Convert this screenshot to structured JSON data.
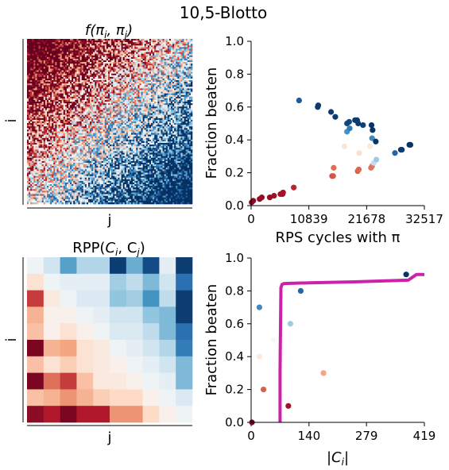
{
  "figure": {
    "suptitle": "10,5-Blotto"
  },
  "colors": {
    "diverging": [
      "#67001f",
      "#b2182b",
      "#d6604d",
      "#f4a582",
      "#fddbc7",
      "#f7f7f7",
      "#d1e5f0",
      "#92c5de",
      "#4393c3",
      "#2166ac",
      "#053061"
    ],
    "accent_line": "#cc22aa"
  },
  "chart_data": [
    {
      "id": "heatmap_f",
      "type": "heatmap",
      "title": "f(πi, πj)",
      "title_main": "f(π",
      "title_sub1": "i",
      "title_mid": ", π",
      "title_sub2": "j",
      "title_end": ")",
      "xlabel": "j",
      "ylabel": "i",
      "rows": 100,
      "cols": 100,
      "value_range": [
        -1,
        1
      ],
      "description_pattern": "noisy payoff matrix; lower-left mostly red (negative), right columns mostly blue (positive)"
    },
    {
      "id": "scatter_rps",
      "type": "scatter",
      "xlabel": "RPS cycles with π",
      "ylabel": "Fraction beaten",
      "xlim": [
        0,
        32517
      ],
      "ylim": [
        0,
        1.0
      ],
      "xticks": [
        0,
        10839,
        21678,
        32517
      ],
      "yticks": [
        0.0,
        0.2,
        0.4,
        0.6,
        0.8,
        1.0
      ],
      "ytick_labels": [
        "0.0",
        "0.2",
        "0.4",
        "0.6",
        "0.8",
        "1.0"
      ],
      "points": [
        {
          "x": 100,
          "y": 0.02,
          "c": 0.05
        },
        {
          "x": 400,
          "y": 0.03,
          "c": 0.05
        },
        {
          "x": 1600,
          "y": 0.04,
          "c": 0.06
        },
        {
          "x": 2000,
          "y": 0.05,
          "c": 0.06
        },
        {
          "x": 3500,
          "y": 0.05,
          "c": 0.06
        },
        {
          "x": 4300,
          "y": 0.06,
          "c": 0.07
        },
        {
          "x": 5500,
          "y": 0.07,
          "c": 0.08
        },
        {
          "x": 5900,
          "y": 0.07,
          "c": 0.08
        },
        {
          "x": 6000,
          "y": 0.08,
          "c": 0.08
        },
        {
          "x": 8000,
          "y": 0.11,
          "c": 0.12
        },
        {
          "x": 15200,
          "y": 0.18,
          "c": 0.18
        },
        {
          "x": 15400,
          "y": 0.18,
          "c": 0.19
        },
        {
          "x": 15500,
          "y": 0.23,
          "c": 0.22
        },
        {
          "x": 20000,
          "y": 0.21,
          "c": 0.2
        },
        {
          "x": 20200,
          "y": 0.22,
          "c": 0.21
        },
        {
          "x": 22500,
          "y": 0.23,
          "c": 0.23
        },
        {
          "x": 22700,
          "y": 0.24,
          "c": 0.23
        },
        {
          "x": 17500,
          "y": 0.36,
          "c": 0.44
        },
        {
          "x": 20300,
          "y": 0.32,
          "c": 0.42
        },
        {
          "x": 22300,
          "y": 0.36,
          "c": 0.45
        },
        {
          "x": 23000,
          "y": 0.26,
          "c": 0.62
        },
        {
          "x": 23500,
          "y": 0.28,
          "c": 0.68
        },
        {
          "x": 18000,
          "y": 0.45,
          "c": 0.8
        },
        {
          "x": 18500,
          "y": 0.47,
          "c": 0.85
        },
        {
          "x": 22700,
          "y": 0.41,
          "c": 0.82
        },
        {
          "x": 9000,
          "y": 0.64,
          "c": 0.92
        },
        {
          "x": 12500,
          "y": 0.6,
          "c": 0.98
        },
        {
          "x": 12600,
          "y": 0.61,
          "c": 0.98
        },
        {
          "x": 15000,
          "y": 0.57,
          "c": 0.98
        },
        {
          "x": 15800,
          "y": 0.54,
          "c": 0.98
        },
        {
          "x": 18000,
          "y": 0.5,
          "c": 0.96
        },
        {
          "x": 18400,
          "y": 0.51,
          "c": 0.96
        },
        {
          "x": 19500,
          "y": 0.52,
          "c": 0.98
        },
        {
          "x": 19900,
          "y": 0.52,
          "c": 0.98
        },
        {
          "x": 20100,
          "y": 0.5,
          "c": 0.98
        },
        {
          "x": 21000,
          "y": 0.49,
          "c": 0.97
        },
        {
          "x": 22600,
          "y": 0.49,
          "c": 0.99
        },
        {
          "x": 22800,
          "y": 0.46,
          "c": 0.99
        },
        {
          "x": 23400,
          "y": 0.39,
          "c": 0.99
        },
        {
          "x": 27000,
          "y": 0.32,
          "c": 0.9
        },
        {
          "x": 28100,
          "y": 0.34,
          "c": 0.98
        },
        {
          "x": 28300,
          "y": 0.34,
          "c": 0.98
        },
        {
          "x": 29700,
          "y": 0.37,
          "c": 0.99
        },
        {
          "x": 29900,
          "y": 0.37,
          "c": 0.99
        }
      ]
    },
    {
      "id": "heatmap_rpp",
      "type": "heatmap",
      "title": "RPP(Ci, Cj)",
      "title_main": "RPP(",
      "title_sub1": "i",
      "title_mid": ", C",
      "title_sub2": "j",
      "title_end": ")",
      "title_c": "C",
      "xlabel": "j",
      "ylabel": "i",
      "value_range": [
        -1,
        1
      ],
      "matrix": [
        [
          0.05,
          0.2,
          0.55,
          0.3,
          0.3,
          0.95,
          0.5,
          0.9,
          0.1,
          0.95
        ],
        [
          -0.15,
          0.05,
          0.1,
          0.1,
          0.1,
          0.35,
          0.25,
          0.45,
          0.2,
          0.75
        ],
        [
          -0.7,
          -0.1,
          0.05,
          0.15,
          0.15,
          0.4,
          0.35,
          0.6,
          0.25,
          0.95
        ],
        [
          -0.35,
          -0.05,
          -0.05,
          0.05,
          0.1,
          0.2,
          0.2,
          0.4,
          0.45,
          0.95
        ],
        [
          -0.3,
          -0.05,
          -0.15,
          -0.05,
          0.05,
          0.15,
          0.15,
          0.25,
          0.45,
          0.75
        ],
        [
          -0.95,
          -0.35,
          -0.4,
          -0.15,
          -0.1,
          0.05,
          0.1,
          0.2,
          0.3,
          0.7
        ],
        [
          -0.3,
          -0.15,
          -0.25,
          -0.15,
          -0.1,
          -0.05,
          0.05,
          0.1,
          0.2,
          0.45
        ],
        [
          -0.95,
          -0.55,
          -0.7,
          -0.3,
          -0.1,
          -0.1,
          -0.05,
          0.05,
          0.1,
          0.45
        ],
        [
          -0.3,
          -0.35,
          -0.45,
          -0.35,
          -0.25,
          -0.2,
          -0.2,
          -0.05,
          0.05,
          0.15
        ],
        [
          -0.9,
          -0.8,
          -0.95,
          -0.8,
          -0.8,
          -0.45,
          -0.45,
          -0.2,
          -0.05,
          0.05
        ]
      ]
    },
    {
      "id": "scatter_size",
      "type": "scatter",
      "xlabel": "|Ci|",
      "xlabel_main": "|C",
      "xlabel_sub": "i",
      "xlabel_end": "|",
      "ylabel": "Fraction beaten",
      "xlim": [
        0,
        419
      ],
      "ylim": [
        0,
        1.0
      ],
      "xticks": [
        0,
        140,
        279,
        419
      ],
      "yticks": [
        0.0,
        0.2,
        0.4,
        0.6,
        0.8,
        1.0
      ],
      "ytick_labels": [
        "0.0",
        "0.2",
        "0.4",
        "0.6",
        "0.8",
        "1.0"
      ],
      "points": [
        {
          "x": 2,
          "y": 0.0,
          "c": 0.02
        },
        {
          "x": 20,
          "y": 0.7,
          "c": 0.82
        },
        {
          "x": 20,
          "y": 0.4,
          "c": 0.45
        },
        {
          "x": 30,
          "y": 0.2,
          "c": 0.2
        },
        {
          "x": 55,
          "y": 0.5,
          "c": 0.5
        },
        {
          "x": 90,
          "y": 0.1,
          "c": 0.08
        },
        {
          "x": 95,
          "y": 0.6,
          "c": 0.68
        },
        {
          "x": 120,
          "y": 0.8,
          "c": 0.9
        },
        {
          "x": 175,
          "y": 0.3,
          "c": 0.3
        },
        {
          "x": 375,
          "y": 0.9,
          "c": 0.99
        }
      ],
      "line": {
        "x": [
          70,
          70,
          72,
          75,
          80,
          150,
          250,
          380,
          400,
          419
        ],
        "y": [
          0.0,
          0.3,
          0.82,
          0.84,
          0.845,
          0.85,
          0.855,
          0.865,
          0.9,
          0.9
        ]
      }
    }
  ]
}
